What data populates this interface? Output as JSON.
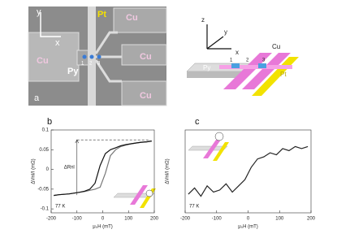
{
  "panel_a": {
    "label": "a",
    "axis_y": "y",
    "axis_x": "x",
    "pt": "Pt",
    "cu": [
      "Cu",
      "Cu",
      "Cu",
      "Cu"
    ],
    "py": "Py",
    "contacts": [
      "1",
      "2",
      "3"
    ]
  },
  "diagram": {
    "axes": [
      "z",
      "y",
      "x"
    ],
    "cu": "Cu",
    "pt": "Pt",
    "py": "Py",
    "contacts": [
      "1",
      "2",
      "3"
    ]
  },
  "chart_data": [
    {
      "type": "line",
      "panel": "b",
      "xlabel": "μ₀H (mT)",
      "ylabel": "ΔVnl/I (mΩ)",
      "temperature": "77 K",
      "x": [
        -190,
        -170,
        -150,
        -130,
        -110,
        -90,
        -70,
        -50,
        -30,
        -10,
        10,
        30,
        50,
        70,
        90,
        110,
        130,
        150,
        170,
        190
      ],
      "series": [
        {
          "color": "#777777",
          "values": [
            -0.066,
            -0.064,
            -0.063,
            -0.062,
            -0.06,
            -0.058,
            -0.056,
            -0.053,
            -0.05,
            -0.045,
            -0.01,
            0.035,
            0.05,
            0.058,
            0.062,
            0.065,
            0.067,
            0.069,
            0.07,
            0.072
          ]
        },
        {
          "color": "#111111",
          "values": [
            -0.066,
            -0.064,
            -0.063,
            -0.062,
            -0.06,
            -0.058,
            -0.055,
            -0.05,
            -0.035,
            0.01,
            0.04,
            0.05,
            0.055,
            0.06,
            0.063,
            0.065,
            0.067,
            0.069,
            0.07,
            0.072
          ]
        }
      ],
      "annotation": {
        "text": "ΔRnl",
        "x": -100,
        "y0": -0.065,
        "y1": 0.075
      },
      "xlim": [
        -200,
        200
      ],
      "xticks": [
        -200,
        -100,
        0,
        100,
        200
      ],
      "ylim": [
        -0.11,
        0.1
      ],
      "yticks": [
        0.1,
        0.05,
        0,
        -0.05,
        -0.1
      ]
    },
    {
      "type": "line",
      "panel": "c",
      "xlabel": "μ₀H (mT)",
      "ylabel": "ΔVnl/I (mΩ)",
      "temperature": "77 K",
      "x": [
        -190,
        -170,
        -150,
        -130,
        -110,
        -90,
        -70,
        -50,
        -30,
        -10,
        10,
        30,
        50,
        70,
        90,
        110,
        130,
        150,
        170,
        190
      ],
      "series": [
        {
          "color": "#222222",
          "values": [
            -0.55,
            -0.4,
            -0.6,
            -0.35,
            -0.5,
            -0.45,
            -0.3,
            -0.5,
            -0.35,
            -0.2,
            0.1,
            0.3,
            0.35,
            0.45,
            0.4,
            0.55,
            0.5,
            0.6,
            0.55,
            0.6
          ]
        }
      ],
      "xlim": [
        -200,
        200
      ],
      "xticks": [
        -200,
        -100,
        0,
        100,
        200
      ],
      "ylim": [
        -1,
        1
      ]
    }
  ]
}
